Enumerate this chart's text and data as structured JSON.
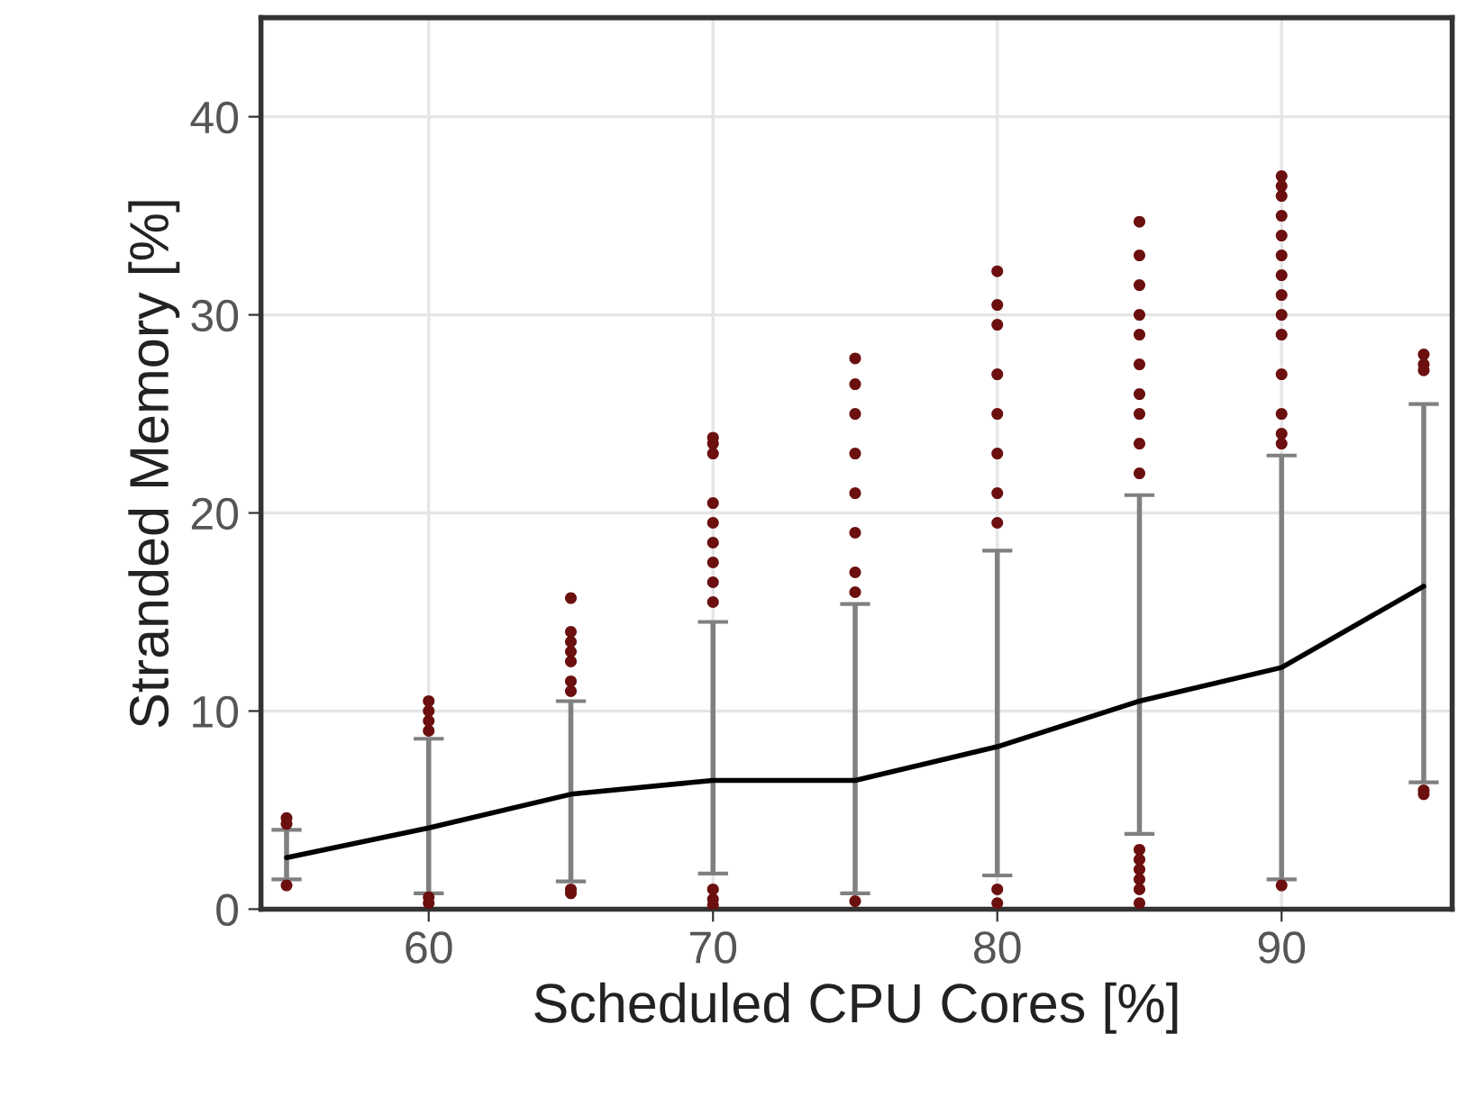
{
  "chart_data": {
    "type": "line",
    "xlabel": "Scheduled CPU Cores [%]",
    "ylabel": "Stranded Memory [%]",
    "xlim": [
      54.1,
      96
    ],
    "xticks": [
      60,
      70,
      80,
      90
    ],
    "ylim": [
      0,
      45
    ],
    "yticks": [
      0,
      10,
      20,
      30,
      40
    ],
    "grid": true,
    "series": [
      {
        "color": "#000000",
        "marker": "none",
        "line_style": "solid",
        "x": [
          55,
          60,
          65,
          70,
          75,
          80,
          85,
          90,
          95
        ],
        "values": [
          2.6,
          4.1,
          5.8,
          6.5,
          6.5,
          8.2,
          10.5,
          12.2,
          16.3
        ],
        "errors": [
          [
            1.5,
            4.0
          ],
          [
            0.8,
            8.6
          ],
          [
            1.4,
            10.5
          ],
          [
            1.8,
            14.5
          ],
          [
            0.8,
            15.4
          ],
          [
            1.7,
            18.1
          ],
          [
            3.8,
            20.9
          ],
          [
            1.5,
            22.9
          ],
          [
            6.4,
            25.5
          ]
        ]
      },
      {
        "type": "scatter",
        "color": "#6b0f0f",
        "marker": "circle",
        "x": [
          55,
          55,
          55,
          60,
          60,
          60,
          60,
          60,
          60,
          65,
          65,
          65,
          65,
          65,
          65,
          65,
          65,
          65,
          70,
          70,
          70,
          70,
          70,
          70,
          70,
          70,
          70,
          70,
          70,
          70,
          75,
          75,
          75,
          75,
          75,
          75,
          75,
          75,
          75,
          80,
          80,
          80,
          80,
          80,
          80,
          80,
          80,
          80,
          80,
          85,
          85,
          85,
          85,
          85,
          85,
          85,
          85,
          85,
          85,
          85,
          85,
          85,
          85,
          85,
          85,
          90,
          90,
          90,
          90,
          90,
          90,
          90,
          90,
          90,
          90,
          90,
          90,
          90,
          90,
          90,
          95,
          95,
          95,
          95,
          95
        ],
        "values": [
          4.6,
          4.3,
          1.2,
          10.5,
          10.0,
          9.5,
          9.0,
          0.3,
          0.6,
          15.7,
          14.0,
          13.5,
          13.0,
          12.5,
          11.5,
          11.0,
          1.0,
          0.8,
          23.8,
          23.5,
          23.0,
          20.5,
          19.5,
          18.5,
          17.5,
          16.5,
          15.5,
          1.0,
          0.5,
          0.2,
          27.8,
          26.5,
          25.0,
          23.0,
          21.0,
          19.0,
          17.0,
          16.0,
          0.4,
          32.2,
          30.5,
          29.5,
          27.0,
          25.0,
          23.0,
          21.0,
          19.5,
          1.0,
          0.3,
          34.7,
          33.0,
          31.5,
          30.0,
          29.0,
          27.5,
          26.0,
          25.0,
          23.5,
          22.0,
          3.0,
          2.5,
          2.0,
          1.5,
          1.0,
          0.3,
          37.0,
          36.5,
          36.0,
          35.0,
          34.0,
          33.0,
          32.0,
          31.0,
          30.0,
          29.0,
          27.0,
          25.0,
          24.0,
          23.5,
          1.2,
          28.0,
          27.5,
          27.2,
          6.0,
          5.8
        ]
      }
    ]
  }
}
